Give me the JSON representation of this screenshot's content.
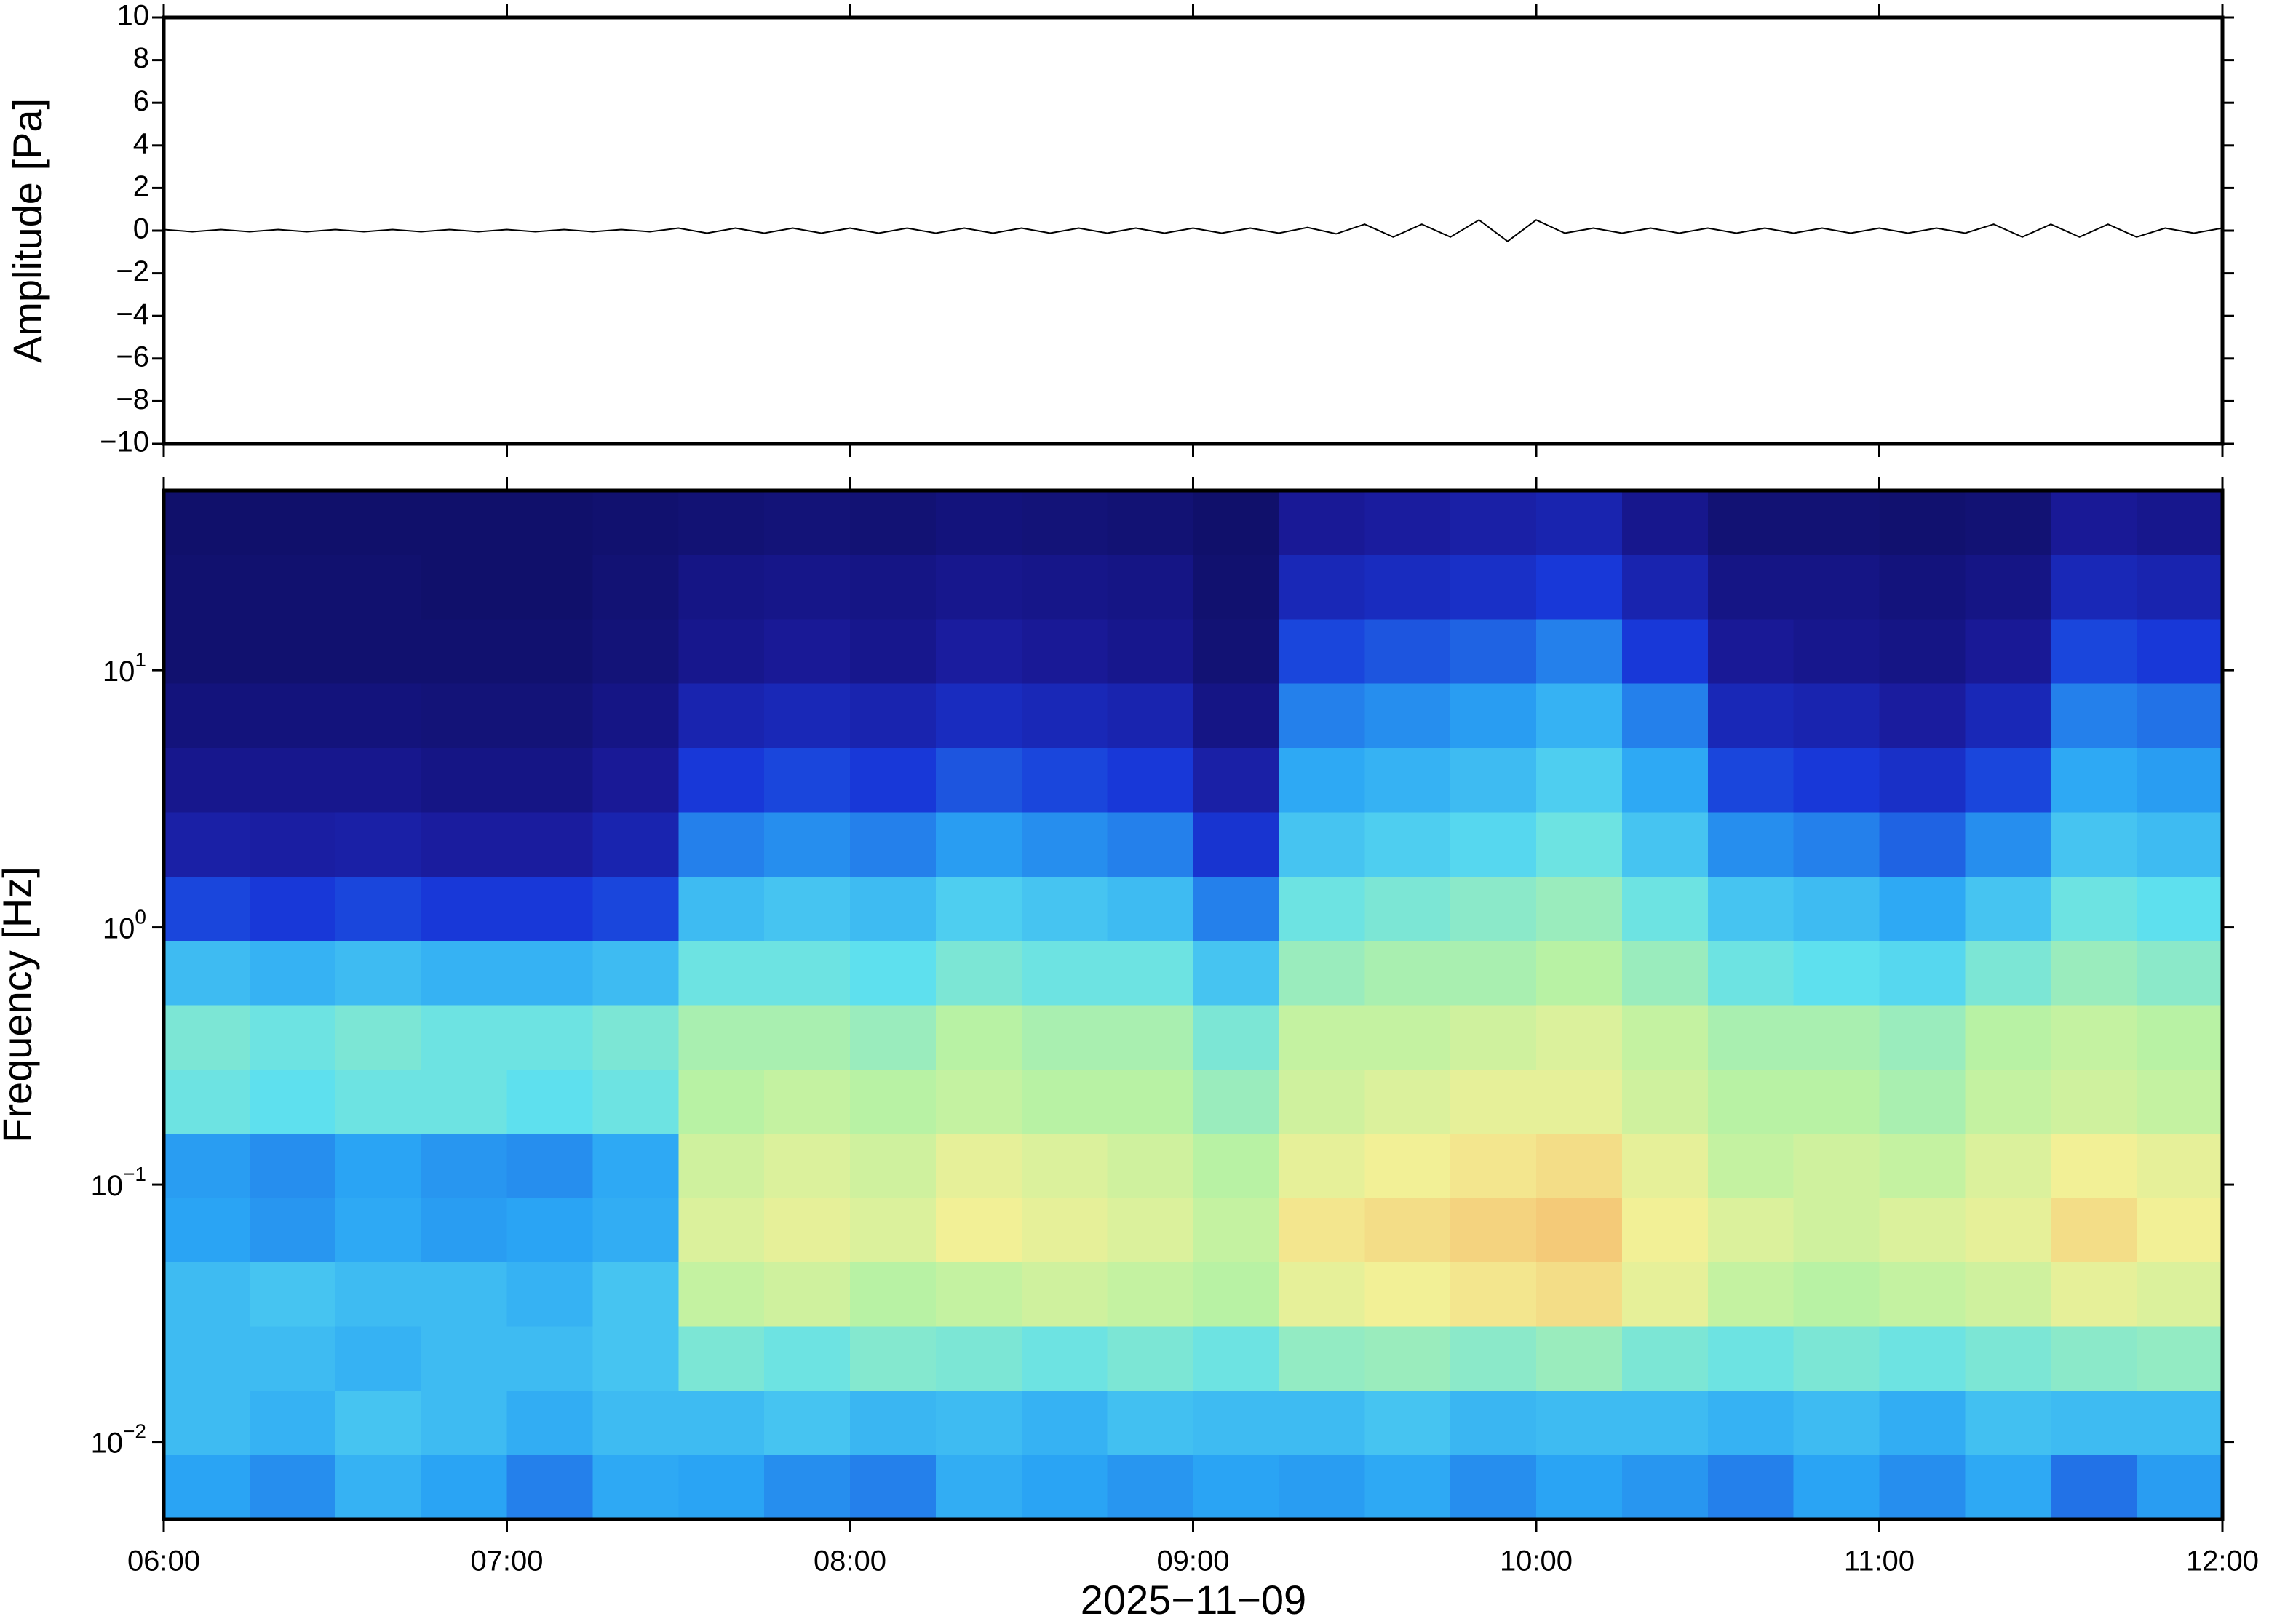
{
  "chart_data": [
    {
      "type": "line",
      "ylabel": "Amplitude [Pa]",
      "xlim": [
        "06:00",
        "12:00"
      ],
      "xticks": [
        "06:00",
        "07:00",
        "08:00",
        "09:00",
        "10:00",
        "11:00",
        "12:00"
      ],
      "ylim": [
        -10,
        10
      ],
      "yticks": [
        {
          "value": -10,
          "label": "−10"
        },
        {
          "value": -8,
          "label": "−8"
        },
        {
          "value": -6,
          "label": "−6"
        },
        {
          "value": -4,
          "label": "−4"
        },
        {
          "value": -2,
          "label": "−2"
        },
        0,
        2,
        4,
        6,
        8,
        10
      ],
      "color": "#000000",
      "x": [
        "06:00",
        "06:05",
        "06:10",
        "06:15",
        "06:20",
        "06:25",
        "06:30",
        "06:35",
        "06:40",
        "06:45",
        "06:50",
        "06:55",
        "07:00",
        "07:05",
        "07:10",
        "07:15",
        "07:20",
        "07:25",
        "07:30",
        "07:35",
        "07:40",
        "07:45",
        "07:50",
        "07:55",
        "08:00",
        "08:05",
        "08:10",
        "08:15",
        "08:20",
        "08:25",
        "08:30",
        "08:35",
        "08:40",
        "08:45",
        "08:50",
        "08:55",
        "09:00",
        "09:05",
        "09:10",
        "09:15",
        "09:20",
        "09:25",
        "09:30",
        "09:35",
        "09:40",
        "09:45",
        "09:50",
        "09:55",
        "10:00",
        "10:05",
        "10:10",
        "10:15",
        "10:20",
        "10:25",
        "10:30",
        "10:35",
        "10:40",
        "10:45",
        "10:50",
        "10:55",
        "11:00",
        "11:05",
        "11:10",
        "11:15",
        "11:20",
        "11:25",
        "11:30",
        "11:35",
        "11:40",
        "11:45",
        "11:50",
        "11:55",
        "12:00"
      ],
      "values": [
        0.05,
        -0.05,
        0.05,
        -0.05,
        0.05,
        -0.05,
        0.05,
        -0.05,
        0.05,
        -0.05,
        0.05,
        -0.05,
        0.05,
        -0.05,
        0.05,
        -0.05,
        0.05,
        -0.05,
        0.12,
        -0.12,
        0.12,
        -0.12,
        0.12,
        -0.12,
        0.12,
        -0.12,
        0.12,
        -0.12,
        0.12,
        -0.12,
        0.12,
        -0.12,
        0.12,
        -0.12,
        0.12,
        -0.12,
        0.12,
        -0.12,
        0.12,
        -0.12,
        0.15,
        -0.15,
        0.3,
        -0.3,
        0.3,
        -0.3,
        0.5,
        -0.5,
        0.5,
        -0.12,
        0.12,
        -0.12,
        0.12,
        -0.12,
        0.12,
        -0.12,
        0.12,
        -0.12,
        0.12,
        -0.12,
        0.12,
        -0.12,
        0.12,
        -0.12,
        0.3,
        -0.3,
        0.3,
        -0.3,
        0.3,
        -0.3,
        0.12,
        -0.12,
        0.12
      ]
    },
    {
      "type": "heatmap",
      "ylabel": "Frequency [Hz]",
      "xlabel": "2025−11−09",
      "xlim": [
        "06:00",
        "12:00"
      ],
      "xticks": [
        "06:00",
        "07:00",
        "08:00",
        "09:00",
        "10:00",
        "11:00",
        "12:00"
      ],
      "ylog": true,
      "ylim": [
        0.005,
        50
      ],
      "yticks": [
        {
          "value": 0.01,
          "label": "10",
          "exponent": "−2"
        },
        {
          "value": 0.1,
          "label": "10",
          "exponent": "−1"
        },
        {
          "value": 1,
          "label": "10",
          "exponent": "0"
        },
        {
          "value": 10,
          "label": "10",
          "exponent": "1"
        }
      ],
      "colorscale": [
        [
          0,
          "#0c0c5a"
        ],
        [
          0.15,
          "#1a1a9a"
        ],
        [
          0.3,
          "#1838d8"
        ],
        [
          0.45,
          "#2aa4f4"
        ],
        [
          0.58,
          "#5ee0ee"
        ],
        [
          0.7,
          "#b8f2a4"
        ],
        [
          0.8,
          "#f2f096"
        ],
        [
          0.9,
          "#f5c070"
        ],
        [
          1,
          "#f08050"
        ]
      ],
      "x_edges": [
        "06:00",
        "06:15",
        "06:30",
        "06:45",
        "07:00",
        "07:15",
        "07:30",
        "07:45",
        "08:00",
        "08:15",
        "08:30",
        "08:45",
        "09:00",
        "09:15",
        "09:30",
        "09:45",
        "10:00",
        "10:15",
        "10:30",
        "10:45",
        "11:00",
        "11:15",
        "11:30",
        "11:45",
        "12:00"
      ],
      "y_edges": [
        0.005,
        0.0089,
        0.0158,
        0.0281,
        0.05,
        0.089,
        0.158,
        0.281,
        0.5,
        0.89,
        1.58,
        2.81,
        5,
        8.9,
        15.8,
        28.1,
        50
      ],
      "values": [
        [
          0.45,
          0.42,
          0.48,
          0.45,
          0.4,
          0.46,
          0.45,
          0.42,
          0.4,
          0.47,
          0.45,
          0.43,
          0.45,
          0.44,
          0.46,
          0.42,
          0.45,
          0.43,
          0.4,
          0.45,
          0.42,
          0.46,
          0.38,
          0.44
        ],
        [
          0.5,
          0.48,
          0.52,
          0.5,
          0.47,
          0.5,
          0.5,
          0.52,
          0.49,
          0.5,
          0.48,
          0.51,
          0.5,
          0.5,
          0.52,
          0.49,
          0.5,
          0.5,
          0.48,
          0.5,
          0.47,
          0.51,
          0.5,
          0.5
        ],
        [
          0.5,
          0.5,
          0.48,
          0.5,
          0.5,
          0.52,
          0.62,
          0.6,
          0.63,
          0.62,
          0.6,
          0.62,
          0.6,
          0.65,
          0.66,
          0.64,
          0.66,
          0.62,
          0.6,
          0.62,
          0.6,
          0.62,
          0.64,
          0.65
        ],
        [
          0.5,
          0.52,
          0.5,
          0.5,
          0.48,
          0.52,
          0.72,
          0.74,
          0.7,
          0.72,
          0.74,
          0.72,
          0.7,
          0.78,
          0.8,
          0.82,
          0.84,
          0.78,
          0.72,
          0.7,
          0.72,
          0.74,
          0.78,
          0.76
        ],
        [
          0.45,
          0.43,
          0.46,
          0.44,
          0.45,
          0.47,
          0.76,
          0.78,
          0.76,
          0.8,
          0.78,
          0.76,
          0.72,
          0.82,
          0.84,
          0.86,
          0.88,
          0.8,
          0.76,
          0.74,
          0.76,
          0.78,
          0.84,
          0.8
        ],
        [
          0.44,
          0.42,
          0.45,
          0.43,
          0.42,
          0.46,
          0.74,
          0.76,
          0.74,
          0.78,
          0.76,
          0.74,
          0.7,
          0.78,
          0.8,
          0.82,
          0.84,
          0.78,
          0.72,
          0.74,
          0.72,
          0.76,
          0.8,
          0.78
        ],
        [
          0.6,
          0.58,
          0.6,
          0.6,
          0.58,
          0.6,
          0.7,
          0.72,
          0.7,
          0.72,
          0.7,
          0.7,
          0.66,
          0.74,
          0.76,
          0.78,
          0.78,
          0.74,
          0.7,
          0.7,
          0.68,
          0.72,
          0.74,
          0.72
        ],
        [
          0.62,
          0.6,
          0.62,
          0.6,
          0.6,
          0.62,
          0.68,
          0.68,
          0.66,
          0.7,
          0.68,
          0.68,
          0.62,
          0.72,
          0.72,
          0.74,
          0.76,
          0.72,
          0.68,
          0.68,
          0.66,
          0.7,
          0.72,
          0.7
        ],
        [
          0.5,
          0.48,
          0.5,
          0.48,
          0.48,
          0.5,
          0.6,
          0.6,
          0.58,
          0.62,
          0.6,
          0.6,
          0.52,
          0.66,
          0.68,
          0.68,
          0.7,
          0.66,
          0.6,
          0.58,
          0.56,
          0.62,
          0.66,
          0.64
        ],
        [
          0.32,
          0.3,
          0.32,
          0.3,
          0.3,
          0.32,
          0.5,
          0.52,
          0.5,
          0.54,
          0.52,
          0.5,
          0.4,
          0.6,
          0.62,
          0.64,
          0.66,
          0.6,
          0.52,
          0.5,
          0.46,
          0.52,
          0.6,
          0.58
        ],
        [
          0.18,
          0.17,
          0.18,
          0.16,
          0.16,
          0.2,
          0.4,
          0.42,
          0.4,
          0.44,
          0.42,
          0.4,
          0.28,
          0.52,
          0.54,
          0.56,
          0.6,
          0.52,
          0.42,
          0.4,
          0.36,
          0.42,
          0.52,
          0.5
        ],
        [
          0.12,
          0.12,
          0.12,
          0.1,
          0.1,
          0.14,
          0.3,
          0.32,
          0.3,
          0.34,
          0.32,
          0.3,
          0.18,
          0.46,
          0.48,
          0.5,
          0.54,
          0.46,
          0.32,
          0.3,
          0.26,
          0.32,
          0.46,
          0.44
        ],
        [
          0.08,
          0.08,
          0.08,
          0.07,
          0.07,
          0.1,
          0.2,
          0.22,
          0.2,
          0.24,
          0.22,
          0.2,
          0.1,
          0.4,
          0.42,
          0.44,
          0.48,
          0.4,
          0.22,
          0.2,
          0.16,
          0.22,
          0.4,
          0.38
        ],
        [
          0.05,
          0.05,
          0.05,
          0.05,
          0.05,
          0.07,
          0.12,
          0.14,
          0.12,
          0.16,
          0.14,
          0.12,
          0.06,
          0.32,
          0.34,
          0.36,
          0.4,
          0.3,
          0.14,
          0.12,
          0.1,
          0.14,
          0.32,
          0.3
        ],
        [
          0.05,
          0.05,
          0.05,
          0.04,
          0.04,
          0.06,
          0.1,
          0.11,
          0.1,
          0.12,
          0.11,
          0.1,
          0.05,
          0.22,
          0.24,
          0.26,
          0.3,
          0.2,
          0.1,
          0.1,
          0.08,
          0.1,
          0.22,
          0.2
        ],
        [
          0.04,
          0.04,
          0.04,
          0.04,
          0.04,
          0.05,
          0.06,
          0.07,
          0.06,
          0.08,
          0.07,
          0.06,
          0.04,
          0.14,
          0.16,
          0.18,
          0.2,
          0.12,
          0.06,
          0.06,
          0.05,
          0.06,
          0.14,
          0.12
        ]
      ]
    }
  ]
}
